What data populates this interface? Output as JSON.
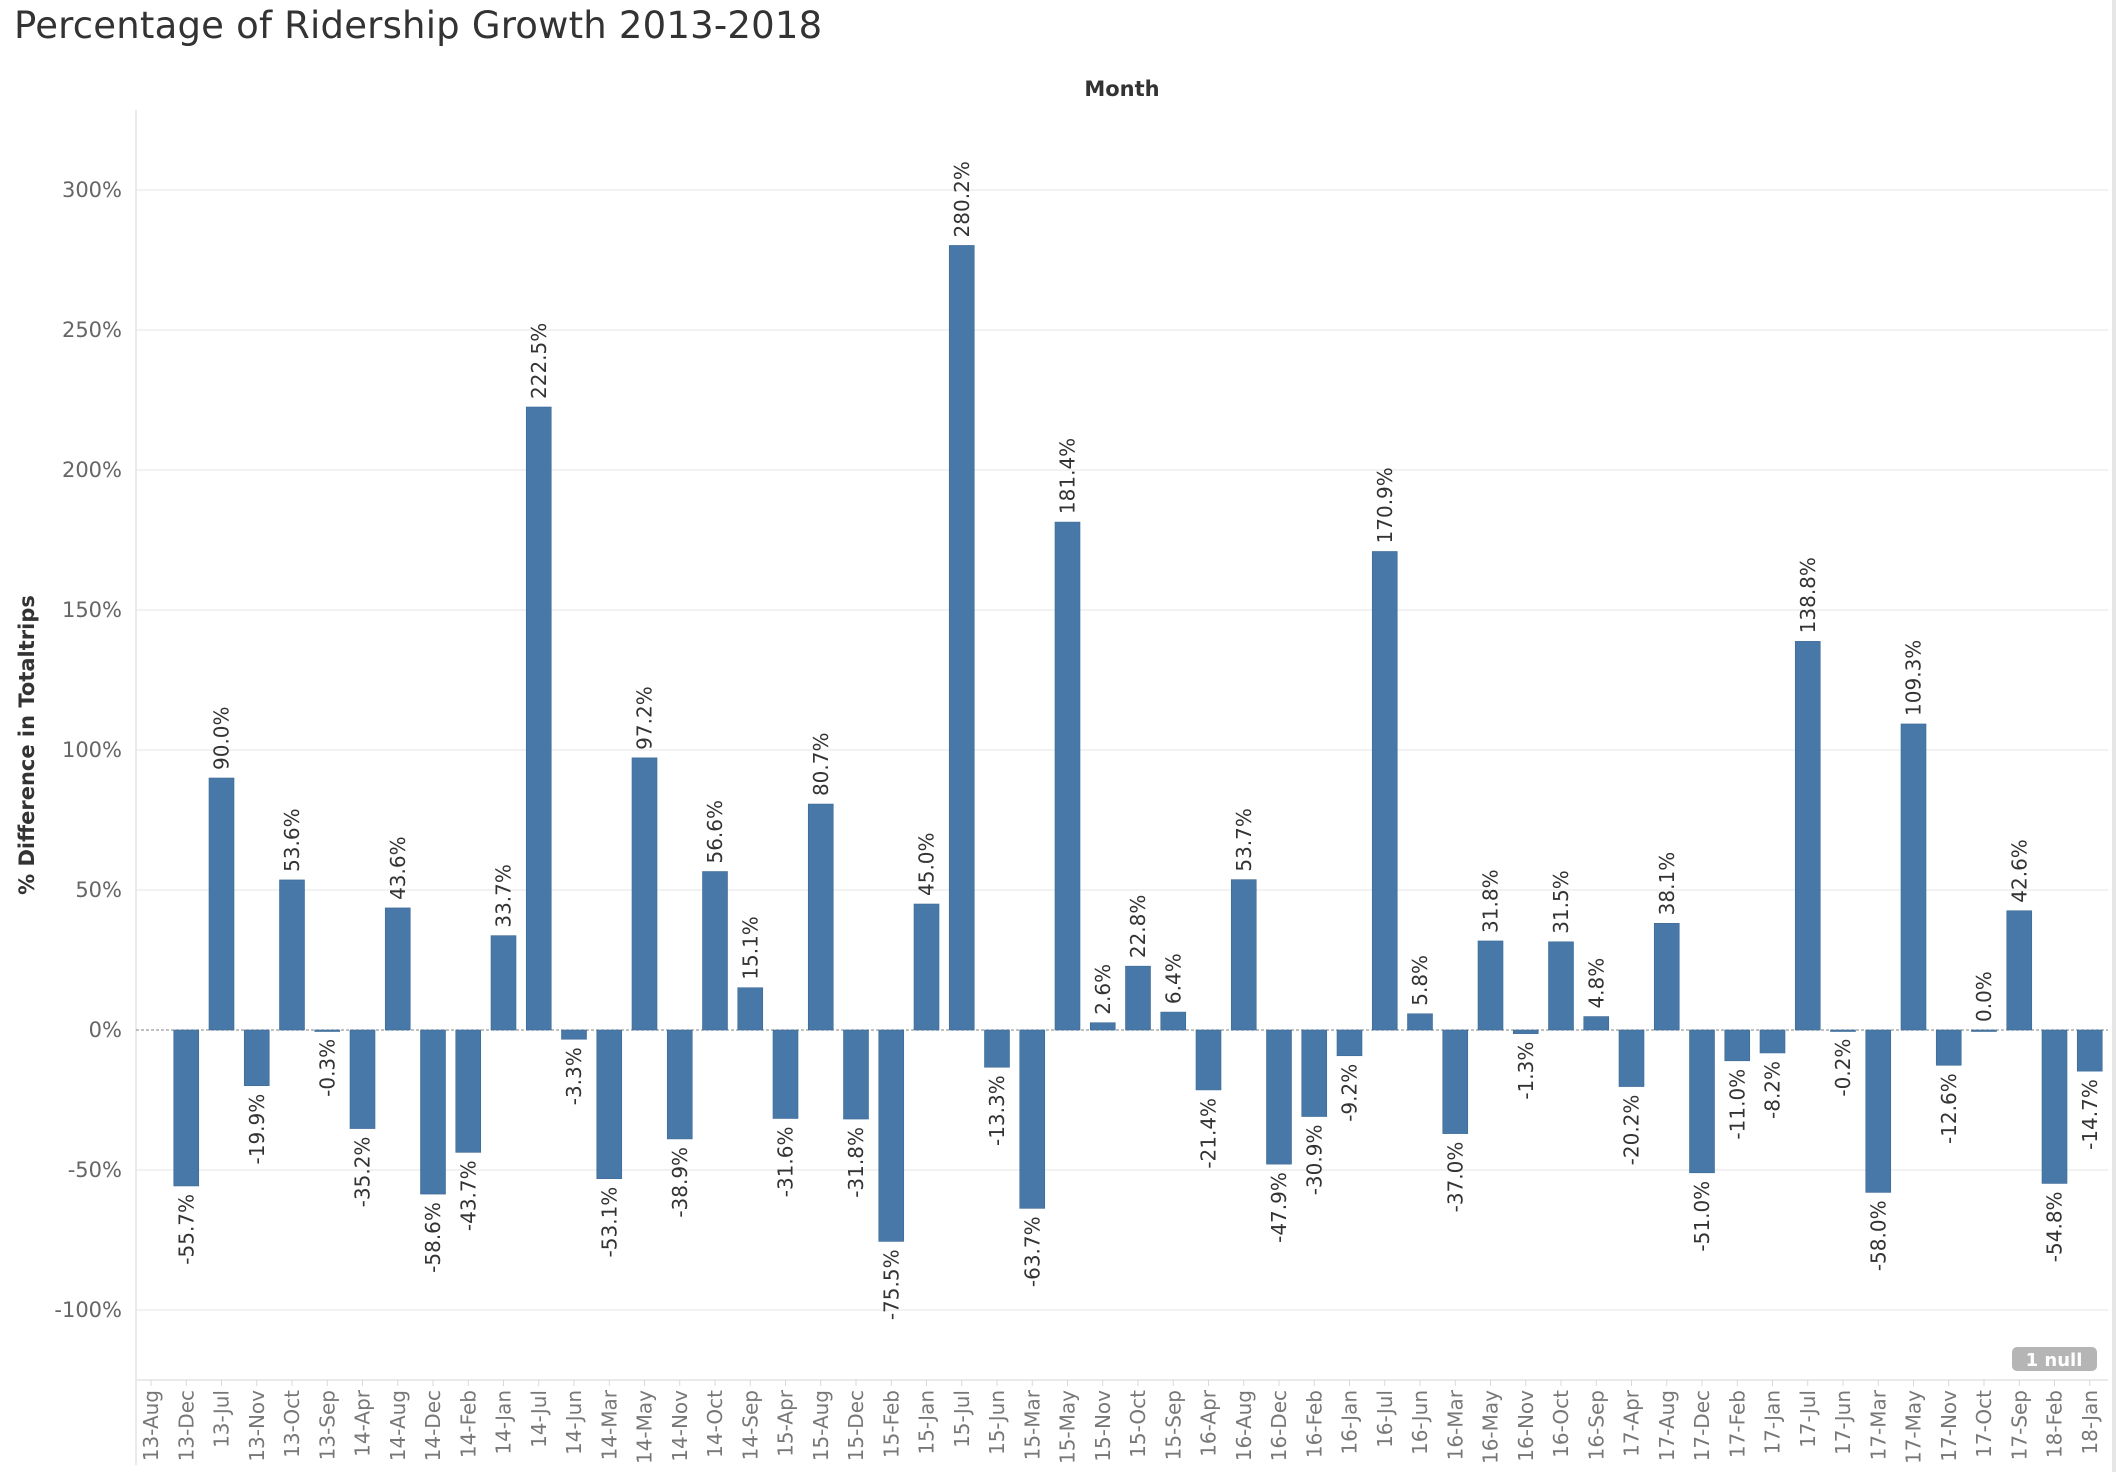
{
  "chart_data": {
    "type": "bar",
    "title": "Percentage of Ridership Growth 2013-2018",
    "xlabel": "Month",
    "ylabel": "% Difference in Totaltrips",
    "ylim": [
      -125,
      330
    ],
    "yticks": [
      -100,
      -50,
      0,
      50,
      100,
      150,
      200,
      250,
      300
    ],
    "ytick_labels": [
      "-100%",
      "-50%",
      "0%",
      "50%",
      "100%",
      "150%",
      "200%",
      "250%",
      "300%"
    ],
    "grid": true,
    "bar_color": "#4878a8",
    "null_badge": "1 null",
    "categories": [
      "13-Aug",
      "13-Dec",
      "13-Jul",
      "13-Nov",
      "13-Oct",
      "13-Sep",
      "14-Apr",
      "14-Aug",
      "14-Dec",
      "14-Feb",
      "14-Jan",
      "14-Jul",
      "14-Jun",
      "14-Mar",
      "14-May",
      "14-Nov",
      "14-Oct",
      "14-Sep",
      "15-Apr",
      "15-Aug",
      "15-Dec",
      "15-Feb",
      "15-Jan",
      "15-Jul",
      "15-Jun",
      "15-Mar",
      "15-May",
      "15-Nov",
      "15-Oct",
      "15-Sep",
      "16-Apr",
      "16-Aug",
      "16-Dec",
      "16-Feb",
      "16-Jan",
      "16-Jul",
      "16-Jun",
      "16-Mar",
      "16-May",
      "16-Nov",
      "16-Oct",
      "16-Sep",
      "17-Apr",
      "17-Aug",
      "17-Dec",
      "17-Feb",
      "17-Jan",
      "17-Jul",
      "17-Jun",
      "17-Mar",
      "17-May",
      "17-Nov",
      "17-Oct",
      "17-Sep",
      "18-Feb",
      "18-Jan"
    ],
    "values": [
      null,
      -55.7,
      90.0,
      -19.9,
      53.6,
      -0.3,
      -35.2,
      43.6,
      -58.6,
      -43.7,
      33.7,
      222.5,
      -3.3,
      -53.1,
      97.2,
      -38.9,
      56.6,
      15.1,
      -31.6,
      80.7,
      -31.8,
      -75.5,
      45.0,
      280.2,
      -13.3,
      -63.7,
      181.4,
      2.6,
      22.8,
      6.4,
      -21.4,
      53.7,
      -47.9,
      -30.9,
      -9.2,
      170.9,
      5.8,
      -37.0,
      31.8,
      -1.3,
      31.5,
      4.8,
      -20.2,
      38.1,
      -51.0,
      -11.0,
      -8.2,
      138.8,
      -0.2,
      -58.0,
      109.3,
      -12.6,
      0.0,
      42.6,
      -54.8,
      -14.7
    ],
    "data_labels": [
      "",
      "-55.7%",
      "90.0%",
      "-19.9%",
      "53.6%",
      "-0.3%",
      "-35.2%",
      "43.6%",
      "-58.6%",
      "-43.7%",
      "33.7%",
      "222.5%",
      "-3.3%",
      "-53.1%",
      "97.2%",
      "-38.9%",
      "56.6%",
      "15.1%",
      "-31.6%",
      "80.7%",
      "-31.8%",
      "-75.5%",
      "45.0%",
      "280.2%",
      "-13.3%",
      "-63.7%",
      "181.4%",
      "2.6%",
      "22.8%",
      "6.4%",
      "-21.4%",
      "53.7%",
      "-47.9%",
      "-30.9%",
      "-9.2%",
      "170.9%",
      "5.8%",
      "-37.0%",
      "31.8%",
      "-1.3%",
      "31.5%",
      "4.8%",
      "-20.2%",
      "38.1%",
      "-51.0%",
      "-11.0%",
      "-8.2%",
      "138.8%",
      "-0.2%",
      "-58.0%",
      "109.3%",
      "-12.6%",
      "0.0%",
      "42.6%",
      "-54.8%",
      "-14.7%"
    ]
  }
}
